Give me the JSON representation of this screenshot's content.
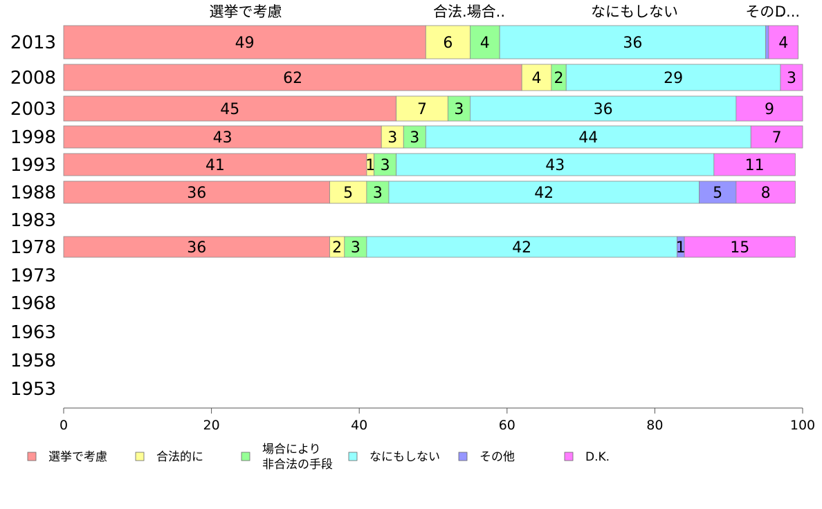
{
  "chart_data": {
    "type": "bar",
    "orientation": "horizontal",
    "stacked": true,
    "categories": [
      "2013",
      "2008",
      "2003",
      "1998",
      "1993",
      "1988",
      "1983",
      "1978",
      "1973",
      "1968",
      "1963",
      "1958",
      "1953"
    ],
    "series": [
      {
        "name": "選挙で考慮",
        "color": "#ff9696",
        "values": [
          49,
          62,
          45,
          43,
          41,
          36,
          null,
          36,
          null,
          null,
          null,
          null,
          null
        ]
      },
      {
        "name": "合法的に",
        "color": "#ffff96",
        "values": [
          6,
          4,
          7,
          3,
          1,
          5,
          null,
          2,
          null,
          null,
          null,
          null,
          null
        ]
      },
      {
        "name": "場合により\n非合法の手段",
        "color": "#96ff96",
        "values": [
          4,
          2,
          3,
          3,
          3,
          3,
          null,
          3,
          null,
          null,
          null,
          null,
          null
        ]
      },
      {
        "name": "なにもしない",
        "color": "#96ffff",
        "values": [
          36,
          29,
          36,
          44,
          43,
          42,
          null,
          42,
          null,
          null,
          null,
          null,
          null
        ]
      },
      {
        "name": "その他",
        "color": "#9696ff",
        "values": [
          0.4,
          0,
          0,
          0,
          0,
          5,
          null,
          1,
          null,
          null,
          null,
          null,
          null
        ]
      },
      {
        "name": "D.K.",
        "color": "#ff7dff",
        "values": [
          4,
          3,
          9,
          7,
          11,
          8,
          null,
          15,
          null,
          null,
          null,
          null,
          null
        ]
      }
    ],
    "value_labels": [
      [
        "49",
        "6",
        "4",
        "36",
        "",
        "4"
      ],
      [
        "62",
        "4",
        "2",
        "29",
        "",
        "3"
      ],
      [
        "45",
        "7",
        "3",
        "36",
        "",
        "9"
      ],
      [
        "43",
        "3",
        "3",
        "44",
        "",
        "7"
      ],
      [
        "41",
        "1",
        "3",
        "43",
        "",
        "11"
      ],
      [
        "36",
        "5",
        "3",
        "42",
        "5",
        "8"
      ],
      null,
      [
        "36",
        "2",
        "3",
        "42",
        "1",
        "15"
      ],
      null,
      null,
      null,
      null,
      null
    ],
    "top_labels": [
      "選挙で考慮",
      "合法.場合..",
      "なにもしない",
      "その..",
      "D..."
    ],
    "xlim": [
      0,
      100
    ],
    "xticks": [
      "0",
      "20",
      "40",
      "60",
      "80",
      "100"
    ],
    "grid": false,
    "legend_position": "bottom"
  }
}
